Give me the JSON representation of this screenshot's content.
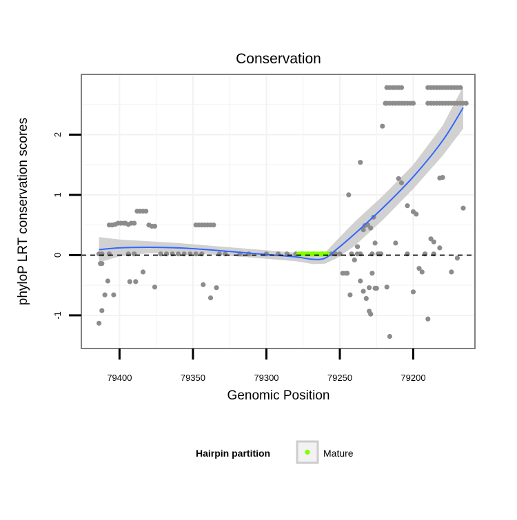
{
  "chart_data": {
    "type": "scatter",
    "title": "Conservation",
    "xlabel": "Genomic Position",
    "ylabel": "phyloP LRT conservation scores",
    "x_reversed": true,
    "xlim": [
      79426,
      79158
    ],
    "ylim": [
      -1.55,
      3.0
    ],
    "x_ticks": [
      79400,
      79350,
      79300,
      79250,
      79200
    ],
    "y_ticks": [
      -1,
      0,
      1,
      2
    ],
    "reference_line": {
      "y": 0,
      "style": "dashed"
    },
    "grid": true,
    "legend": {
      "position": "bottom",
      "title": "Hairpin partition",
      "entries": [
        "Mature"
      ]
    },
    "colors": {
      "points": "#8c8c8c",
      "smooth": "#3366ff",
      "ribbon": "#cccccc",
      "highlight": "#80ff00",
      "panel_border": "#7f7f7f",
      "grid": "#f2f2f2"
    },
    "highlight_range": [
      79278,
      79258
    ],
    "series": [
      {
        "values": [
          [
            79414,
            0.02
          ],
          [
            79413,
            -0.14
          ],
          [
            79412,
            -0.14
          ],
          [
            79414,
            -1.13
          ],
          [
            79412,
            -0.92
          ],
          [
            79410,
            -0.66
          ],
          [
            79408,
            -0.43
          ],
          [
            79407,
            0.5
          ],
          [
            79405,
            0.5
          ],
          [
            79403,
            0.51
          ],
          [
            79401,
            0.53
          ],
          [
            79399,
            0.53
          ],
          [
            79397,
            0.53
          ],
          [
            79396,
            0.53
          ],
          [
            79394,
            0.51
          ],
          [
            79392,
            0.53
          ],
          [
            79390,
            0.53
          ],
          [
            79388,
            0.73
          ],
          [
            79386,
            0.73
          ],
          [
            79384,
            0.73
          ],
          [
            79382,
            0.73
          ],
          [
            79380,
            0.5
          ],
          [
            79378,
            0.48
          ],
          [
            79376,
            0.48
          ],
          [
            79404,
            -0.66
          ],
          [
            79394,
            0.02
          ],
          [
            79393,
            -0.44
          ],
          [
            79389,
            -0.44
          ],
          [
            79384,
            -0.28
          ],
          [
            79376,
            -0.53
          ],
          [
            79348,
            0.5
          ],
          [
            79346,
            0.5
          ],
          [
            79344,
            0.5
          ],
          [
            79342,
            0.5
          ],
          [
            79340,
            0.5
          ],
          [
            79338,
            0.5
          ],
          [
            79336,
            0.5
          ],
          [
            79343,
            -0.49
          ],
          [
            79338,
            -0.71
          ],
          [
            79334,
            -0.54
          ],
          [
            79332,
            0.02
          ],
          [
            79328,
            0.02
          ],
          [
            79244,
            1.0
          ],
          [
            79236,
            1.54
          ],
          [
            79234,
            0.42
          ],
          [
            79233,
            0.49
          ],
          [
            79231,
            0.5
          ],
          [
            79229,
            0.45
          ],
          [
            79227,
            0.63
          ],
          [
            79225,
            -0.55
          ],
          [
            79223,
            0.02
          ],
          [
            79221,
            2.14
          ],
          [
            79219,
            2.52
          ],
          [
            79218,
            2.52
          ],
          [
            79216,
            2.52
          ],
          [
            79214,
            2.52
          ],
          [
            79212,
            2.52
          ],
          [
            79210,
            2.52
          ],
          [
            79208,
            2.52
          ],
          [
            79206,
            2.52
          ],
          [
            79204,
            2.52
          ],
          [
            79202,
            2.52
          ],
          [
            79200,
            2.52
          ],
          [
            79218,
            2.78
          ],
          [
            79216,
            2.78
          ],
          [
            79214,
            2.78
          ],
          [
            79212,
            2.78
          ],
          [
            79210,
            2.78
          ],
          [
            79208,
            2.78
          ],
          [
            79190,
            2.78
          ],
          [
            79188,
            2.78
          ],
          [
            79186,
            2.78
          ],
          [
            79184,
            2.78
          ],
          [
            79182,
            2.78
          ],
          [
            79180,
            2.78
          ],
          [
            79178,
            2.78
          ],
          [
            79176,
            2.78
          ],
          [
            79174,
            2.78
          ],
          [
            79172,
            2.78
          ],
          [
            79170,
            2.78
          ],
          [
            79168,
            2.78
          ],
          [
            79190,
            2.52
          ],
          [
            79188,
            2.52
          ],
          [
            79186,
            2.52
          ],
          [
            79184,
            2.52
          ],
          [
            79182,
            2.52
          ],
          [
            79180,
            2.52
          ],
          [
            79178,
            2.52
          ],
          [
            79176,
            2.52
          ],
          [
            79174,
            2.52
          ],
          [
            79172,
            2.52
          ],
          [
            79170,
            2.52
          ],
          [
            79168,
            2.52
          ],
          [
            79166,
            2.52
          ],
          [
            79164,
            2.52
          ],
          [
            79180,
            2.52
          ],
          [
            79210,
            1.27
          ],
          [
            79208,
            1.2
          ],
          [
            79204,
            0.82
          ],
          [
            79200,
            0.72
          ],
          [
            79198,
            0.68
          ],
          [
            79182,
            1.28
          ],
          [
            79180,
            1.29
          ],
          [
            79188,
            0.27
          ],
          [
            79186,
            0.22
          ],
          [
            79182,
            0.12
          ],
          [
            79166,
            0.78
          ],
          [
            79212,
            0.2
          ],
          [
            79242,
            0.02
          ],
          [
            79240,
            -0.08
          ],
          [
            79238,
            0.02
          ],
          [
            79236,
            -0.43
          ],
          [
            79234,
            -0.6
          ],
          [
            79232,
            -0.72
          ],
          [
            79230,
            -0.93
          ],
          [
            79229,
            -0.98
          ],
          [
            79228,
            -0.3
          ],
          [
            79226,
            -0.55
          ],
          [
            79222,
            0.02
          ],
          [
            79218,
            -0.53
          ],
          [
            79216,
            -1.35
          ],
          [
            79204,
            0.02
          ],
          [
            79200,
            -0.61
          ],
          [
            79196,
            -0.22
          ],
          [
            79194,
            -0.28
          ],
          [
            79186,
            0.02
          ],
          [
            79190,
            -1.06
          ],
          [
            79174,
            -0.28
          ],
          [
            79170,
            -0.05
          ],
          [
            79192,
            0.02
          ],
          [
            79246,
            -0.3
          ],
          [
            79245,
            -0.3
          ],
          [
            79243,
            -0.66
          ],
          [
            79250,
            0.02
          ],
          [
            79248,
            -0.3
          ],
          [
            79238,
            0.14
          ],
          [
            79236,
            0.02
          ],
          [
            79228,
            0.02
          ],
          [
            79226,
            0.2
          ],
          [
            79230,
            -0.54
          ],
          [
            79224,
            0.02
          ],
          [
            79412,
            0.02
          ],
          [
            79407,
            0.02
          ],
          [
            79390,
            0.02
          ],
          [
            79372,
            0.02
          ],
          [
            79368,
            0.02
          ],
          [
            79364,
            0.02
          ],
          [
            79360,
            0.02
          ],
          [
            79356,
            0.02
          ],
          [
            79352,
            0.02
          ],
          [
            79348,
            0.02
          ],
          [
            79344,
            0.02
          ],
          [
            79318,
            0.02
          ],
          [
            79312,
            0.02
          ],
          [
            79300,
            0.02
          ],
          [
            79292,
            0.02
          ],
          [
            79286,
            0.02
          ],
          [
            79280,
            0.02
          ],
          [
            79276,
            0.02
          ],
          [
            79272,
            0.02
          ],
          [
            79268,
            0.02
          ],
          [
            79262,
            0.02
          ],
          [
            79256,
            0.02
          ],
          [
            79253,
            0.02
          ]
        ]
      }
    ],
    "smooth_fit": {
      "x": [
        79414,
        79400,
        79380,
        79360,
        79340,
        79320,
        79300,
        79280,
        79268,
        79260,
        79252,
        79240,
        79220,
        79200,
        79180,
        79166
      ],
      "y": [
        0.09,
        0.12,
        0.13,
        0.12,
        0.09,
        0.05,
        0.01,
        -0.03,
        -0.07,
        -0.05,
        0.1,
        0.35,
        0.8,
        1.3,
        1.9,
        2.45
      ],
      "lower": [
        -0.12,
        -0.02,
        0.03,
        0.04,
        0.02,
        -0.02,
        -0.06,
        -0.1,
        -0.15,
        -0.14,
        -0.05,
        0.15,
        0.6,
        1.1,
        1.65,
        2.1
      ],
      "upper": [
        0.3,
        0.26,
        0.23,
        0.2,
        0.16,
        0.12,
        0.08,
        0.04,
        0.01,
        0.04,
        0.25,
        0.55,
        1.0,
        1.5,
        2.15,
        2.8
      ]
    }
  }
}
